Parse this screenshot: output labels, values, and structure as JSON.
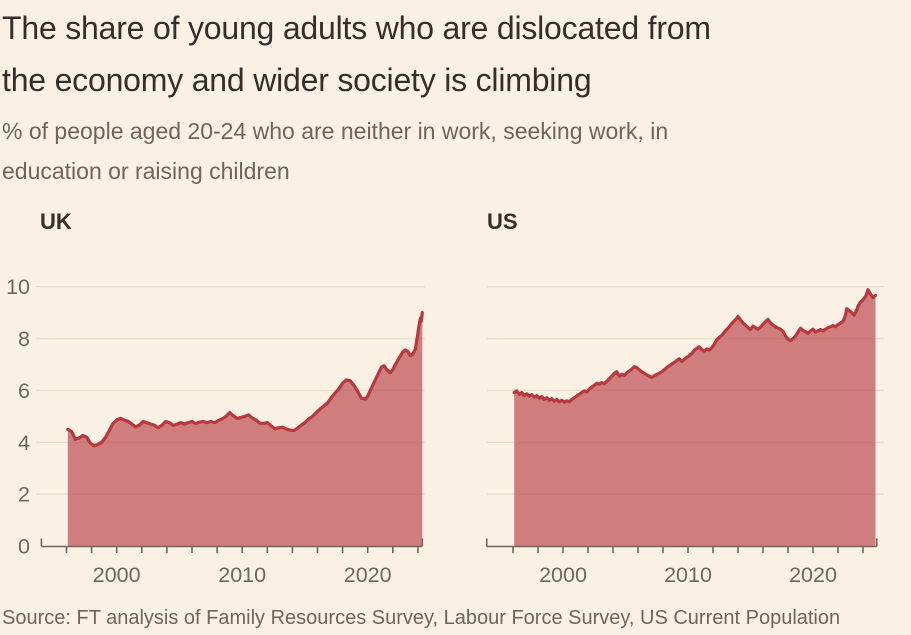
{
  "page": {
    "background": "#FAF0E3"
  },
  "header": {
    "title_lines": [
      "The share of young adults who are dislocated from",
      "the economy and wider society is climbing"
    ],
    "subtitle_lines": [
      "% of people aged 20-24 who are neither in work, seeking work, in",
      "education or raising children"
    ]
  },
  "source": "Source: FT analysis of Family Resources Survey, Labour Force Survey, US Current Population",
  "colors": {
    "background": "#FAF0E3",
    "line": "#B5393F",
    "fill": "rgba(181,57,63,0.62)",
    "grid": "#E9DECB",
    "axis": "#6E675F",
    "tick_label": "#6E675F",
    "text_dark": "#33302B",
    "text_muted": "#6E655C"
  },
  "chart_data": [
    {
      "type": "area",
      "label": "UK",
      "x_range": [
        1994,
        2024.35
      ],
      "x_tick_step": 2,
      "x_label_years": [
        2000,
        2010,
        2020
      ],
      "y_range": [
        0,
        10
      ],
      "y_ticks": [
        0,
        2,
        4,
        6,
        8,
        10
      ],
      "show_y_tick_labels": true,
      "grid": true,
      "points": [
        [
          1996.1,
          4.5
        ],
        [
          1996.4,
          4.42
        ],
        [
          1996.7,
          4.12
        ],
        [
          1997,
          4.16
        ],
        [
          1997.3,
          4.26
        ],
        [
          1997.6,
          4.2
        ],
        [
          1997.9,
          3.97
        ],
        [
          1998.2,
          3.86
        ],
        [
          1998.5,
          3.92
        ],
        [
          1998.8,
          4.0
        ],
        [
          1999.1,
          4.18
        ],
        [
          1999.4,
          4.45
        ],
        [
          1999.7,
          4.72
        ],
        [
          2000,
          4.86
        ],
        [
          2000.3,
          4.92
        ],
        [
          2000.6,
          4.86
        ],
        [
          2000.9,
          4.81
        ],
        [
          2001.2,
          4.7
        ],
        [
          2001.5,
          4.6
        ],
        [
          2001.8,
          4.66
        ],
        [
          2002.1,
          4.8
        ],
        [
          2002.4,
          4.76
        ],
        [
          2002.7,
          4.7
        ],
        [
          2003,
          4.66
        ],
        [
          2003.3,
          4.56
        ],
        [
          2003.6,
          4.66
        ],
        [
          2003.9,
          4.8
        ],
        [
          2004.2,
          4.76
        ],
        [
          2004.5,
          4.65
        ],
        [
          2004.8,
          4.7
        ],
        [
          2005.1,
          4.76
        ],
        [
          2005.4,
          4.7
        ],
        [
          2005.7,
          4.76
        ],
        [
          2006,
          4.8
        ],
        [
          2006.3,
          4.72
        ],
        [
          2006.6,
          4.78
        ],
        [
          2006.9,
          4.8
        ],
        [
          2007.2,
          4.76
        ],
        [
          2007.5,
          4.8
        ],
        [
          2007.8,
          4.76
        ],
        [
          2008.1,
          4.84
        ],
        [
          2008.4,
          4.9
        ],
        [
          2008.7,
          5.0
        ],
        [
          2009,
          5.14
        ],
        [
          2009.3,
          5.02
        ],
        [
          2009.6,
          4.92
        ],
        [
          2009.9,
          4.96
        ],
        [
          2010.2,
          5.0
        ],
        [
          2010.5,
          5.06
        ],
        [
          2010.8,
          4.94
        ],
        [
          2011.1,
          4.86
        ],
        [
          2011.4,
          4.74
        ],
        [
          2011.7,
          4.72
        ],
        [
          2012,
          4.76
        ],
        [
          2012.3,
          4.64
        ],
        [
          2012.6,
          4.52
        ],
        [
          2012.9,
          4.56
        ],
        [
          2013.2,
          4.58
        ],
        [
          2013.5,
          4.52
        ],
        [
          2013.8,
          4.47
        ],
        [
          2014.1,
          4.45
        ],
        [
          2014.4,
          4.54
        ],
        [
          2014.7,
          4.66
        ],
        [
          2015,
          4.76
        ],
        [
          2015.3,
          4.9
        ],
        [
          2015.6,
          5.0
        ],
        [
          2015.9,
          5.14
        ],
        [
          2016.2,
          5.28
        ],
        [
          2016.5,
          5.4
        ],
        [
          2016.8,
          5.52
        ],
        [
          2017.1,
          5.72
        ],
        [
          2017.4,
          5.9
        ],
        [
          2017.7,
          6.06
        ],
        [
          2018,
          6.28
        ],
        [
          2018.3,
          6.4
        ],
        [
          2018.6,
          6.38
        ],
        [
          2018.9,
          6.2
        ],
        [
          2019.2,
          5.96
        ],
        [
          2019.5,
          5.7
        ],
        [
          2019.8,
          5.66
        ],
        [
          2020,
          5.78
        ],
        [
          2020.3,
          6.1
        ],
        [
          2020.6,
          6.4
        ],
        [
          2020.9,
          6.7
        ],
        [
          2021.1,
          6.9
        ],
        [
          2021.3,
          6.95
        ],
        [
          2021.5,
          6.82
        ],
        [
          2021.8,
          6.68
        ],
        [
          2022,
          6.8
        ],
        [
          2022.2,
          7.0
        ],
        [
          2022.5,
          7.25
        ],
        [
          2022.8,
          7.48
        ],
        [
          2023,
          7.56
        ],
        [
          2023.2,
          7.5
        ],
        [
          2023.4,
          7.34
        ],
        [
          2023.6,
          7.4
        ],
        [
          2023.8,
          7.6
        ],
        [
          2024,
          8.2
        ],
        [
          2024.1,
          8.55
        ],
        [
          2024.2,
          8.78
        ],
        [
          2024.27,
          8.66
        ],
        [
          2024.35,
          9.0
        ]
      ]
    },
    {
      "type": "area",
      "label": "US",
      "x_range": [
        1993.9,
        2025.1
      ],
      "x_tick_step": 2,
      "x_label_years": [
        2000,
        2010,
        2020
      ],
      "y_range": [
        0,
        10
      ],
      "y_ticks": [
        0,
        2,
        4,
        6,
        8,
        10
      ],
      "show_y_tick_labels": false,
      "grid": true,
      "points": [
        [
          1996.1,
          5.92
        ],
        [
          1996.3,
          5.98
        ],
        [
          1996.5,
          5.85
        ],
        [
          1996.7,
          5.92
        ],
        [
          1996.9,
          5.8
        ],
        [
          1997.1,
          5.87
        ],
        [
          1997.3,
          5.78
        ],
        [
          1997.5,
          5.84
        ],
        [
          1997.7,
          5.74
        ],
        [
          1997.9,
          5.8
        ],
        [
          1998.1,
          5.7
        ],
        [
          1998.3,
          5.76
        ],
        [
          1998.5,
          5.65
        ],
        [
          1998.7,
          5.72
        ],
        [
          1998.9,
          5.62
        ],
        [
          1999.1,
          5.68
        ],
        [
          1999.3,
          5.58
        ],
        [
          1999.5,
          5.65
        ],
        [
          1999.7,
          5.56
        ],
        [
          1999.9,
          5.62
        ],
        [
          2000.1,
          5.55
        ],
        [
          2000.3,
          5.6
        ],
        [
          2000.5,
          5.56
        ],
        [
          2000.7,
          5.65
        ],
        [
          2000.9,
          5.72
        ],
        [
          2001.1,
          5.78
        ],
        [
          2001.3,
          5.85
        ],
        [
          2001.5,
          5.92
        ],
        [
          2001.7,
          5.98
        ],
        [
          2001.9,
          5.94
        ],
        [
          2002.1,
          6.05
        ],
        [
          2002.3,
          6.12
        ],
        [
          2002.5,
          6.2
        ],
        [
          2002.7,
          6.28
        ],
        [
          2002.9,
          6.24
        ],
        [
          2003.1,
          6.3
        ],
        [
          2003.3,
          6.26
        ],
        [
          2003.5,
          6.35
        ],
        [
          2003.7,
          6.45
        ],
        [
          2003.9,
          6.55
        ],
        [
          2004.1,
          6.65
        ],
        [
          2004.3,
          6.72
        ],
        [
          2004.5,
          6.55
        ],
        [
          2004.7,
          6.62
        ],
        [
          2004.9,
          6.58
        ],
        [
          2005.1,
          6.68
        ],
        [
          2005.3,
          6.75
        ],
        [
          2005.5,
          6.82
        ],
        [
          2005.7,
          6.92
        ],
        [
          2005.9,
          6.88
        ],
        [
          2006.1,
          6.8
        ],
        [
          2006.3,
          6.72
        ],
        [
          2006.5,
          6.66
        ],
        [
          2006.7,
          6.6
        ],
        [
          2006.9,
          6.55
        ],
        [
          2007.1,
          6.5
        ],
        [
          2007.3,
          6.56
        ],
        [
          2007.5,
          6.62
        ],
        [
          2007.7,
          6.66
        ],
        [
          2007.9,
          6.72
        ],
        [
          2008.1,
          6.8
        ],
        [
          2008.3,
          6.88
        ],
        [
          2008.5,
          6.95
        ],
        [
          2008.7,
          7.02
        ],
        [
          2008.9,
          7.08
        ],
        [
          2009.1,
          7.15
        ],
        [
          2009.3,
          7.22
        ],
        [
          2009.5,
          7.12
        ],
        [
          2009.7,
          7.2
        ],
        [
          2009.9,
          7.28
        ],
        [
          2010.1,
          7.34
        ],
        [
          2010.3,
          7.42
        ],
        [
          2010.5,
          7.55
        ],
        [
          2010.7,
          7.62
        ],
        [
          2010.9,
          7.68
        ],
        [
          2011.1,
          7.58
        ],
        [
          2011.3,
          7.52
        ],
        [
          2011.5,
          7.6
        ],
        [
          2011.7,
          7.55
        ],
        [
          2011.9,
          7.65
        ],
        [
          2012.1,
          7.78
        ],
        [
          2012.3,
          7.95
        ],
        [
          2012.5,
          8.05
        ],
        [
          2012.7,
          8.12
        ],
        [
          2012.9,
          8.25
        ],
        [
          2013.1,
          8.35
        ],
        [
          2013.3,
          8.45
        ],
        [
          2013.5,
          8.58
        ],
        [
          2013.7,
          8.68
        ],
        [
          2013.9,
          8.78
        ],
        [
          2014.0,
          8.86
        ],
        [
          2014.2,
          8.72
        ],
        [
          2014.4,
          8.6
        ],
        [
          2014.6,
          8.52
        ],
        [
          2014.8,
          8.42
        ],
        [
          2015.0,
          8.35
        ],
        [
          2015.2,
          8.48
        ],
        [
          2015.4,
          8.42
        ],
        [
          2015.6,
          8.36
        ],
        [
          2015.8,
          8.44
        ],
        [
          2016.0,
          8.55
        ],
        [
          2016.2,
          8.65
        ],
        [
          2016.4,
          8.74
        ],
        [
          2016.6,
          8.6
        ],
        [
          2016.8,
          8.52
        ],
        [
          2017.0,
          8.46
        ],
        [
          2017.2,
          8.4
        ],
        [
          2017.4,
          8.36
        ],
        [
          2017.6,
          8.28
        ],
        [
          2017.8,
          8.1
        ],
        [
          2018.0,
          7.98
        ],
        [
          2018.2,
          7.92
        ],
        [
          2018.4,
          8.0
        ],
        [
          2018.6,
          8.1
        ],
        [
          2018.8,
          8.25
        ],
        [
          2019.0,
          8.4
        ],
        [
          2019.2,
          8.32
        ],
        [
          2019.4,
          8.26
        ],
        [
          2019.6,
          8.2
        ],
        [
          2019.8,
          8.3
        ],
        [
          2020.0,
          8.36
        ],
        [
          2020.2,
          8.25
        ],
        [
          2020.4,
          8.3
        ],
        [
          2020.6,
          8.35
        ],
        [
          2020.8,
          8.3
        ],
        [
          2021.0,
          8.36
        ],
        [
          2021.2,
          8.42
        ],
        [
          2021.4,
          8.45
        ],
        [
          2021.6,
          8.5
        ],
        [
          2021.8,
          8.46
        ],
        [
          2022.0,
          8.54
        ],
        [
          2022.2,
          8.6
        ],
        [
          2022.4,
          8.66
        ],
        [
          2022.6,
          8.9
        ],
        [
          2022.7,
          9.15
        ],
        [
          2022.9,
          9.08
        ],
        [
          2023.1,
          9.0
        ],
        [
          2023.3,
          8.9
        ],
        [
          2023.5,
          9.1
        ],
        [
          2023.6,
          9.25
        ],
        [
          2023.8,
          9.4
        ],
        [
          2024.0,
          9.5
        ],
        [
          2024.2,
          9.62
        ],
        [
          2024.4,
          9.88
        ],
        [
          2024.6,
          9.72
        ],
        [
          2024.8,
          9.58
        ],
        [
          2025.0,
          9.66
        ]
      ]
    }
  ]
}
